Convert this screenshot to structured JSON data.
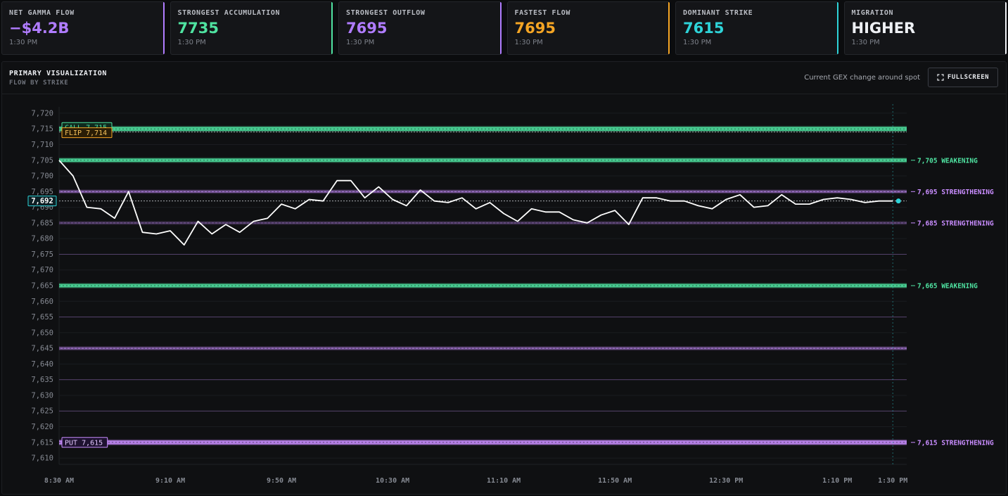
{
  "cards": [
    {
      "label": "NET GAMMA FLOW",
      "value": "−$4.2B",
      "time": "1:30 PM",
      "color": "#b07cff"
    },
    {
      "label": "STRONGEST ACCUMULATION",
      "value": "7735",
      "time": "1:30 PM",
      "color": "#4fe3a1"
    },
    {
      "label": "STRONGEST OUTFLOW",
      "value": "7695",
      "time": "1:30 PM",
      "color": "#b07cff"
    },
    {
      "label": "FASTEST FLOW",
      "value": "7695",
      "time": "1:30 PM",
      "color": "#f5a524"
    },
    {
      "label": "DOMINANT STRIKE",
      "value": "7615",
      "time": "1:30 PM",
      "color": "#2ed3d8"
    },
    {
      "label": "MIGRATION",
      "value": "HIGHER",
      "time": "1:30 PM",
      "color": "#eef0f4"
    }
  ],
  "panel": {
    "title": "PRIMARY VISUALIZATION",
    "subtitle": "FLOW BY STRIKE",
    "note": "Current GEX change around spot",
    "fullscreen_label": "FULLSCREEN",
    "fullscreen_icon": "expand-icon"
  },
  "colors": {
    "green": "#4fe3a1",
    "purple": "#c98dff",
    "price": "#ffffff",
    "spot": "#2ed3d8",
    "flip": "#f5a524"
  },
  "chart_data": {
    "type": "line",
    "x_ticks": [
      "8:30 AM",
      "9:10 AM",
      "9:50 AM",
      "10:30 AM",
      "11:10 AM",
      "11:50 AM",
      "12:30 PM",
      "1:10 PM",
      "1:30 PM"
    ],
    "x_range": [
      "8:30 AM",
      "1:35 PM"
    ],
    "ylim": [
      7608,
      7722
    ],
    "y_ticks": [
      7720,
      7715,
      7710,
      7705,
      7700,
      7695,
      7690,
      7685,
      7680,
      7675,
      7670,
      7665,
      7660,
      7655,
      7650,
      7645,
      7640,
      7635,
      7630,
      7625,
      7620,
      7615,
      7610
    ],
    "y_tick_labels": [
      "7,720",
      "7,715",
      "7,710",
      "7,705",
      "7,700",
      "7,695",
      "7,690",
      "7,685",
      "7,680",
      "7,675",
      "7,670",
      "7,665",
      "7,660",
      "7,655",
      "7,650",
      "7,645",
      "7,640",
      "7,635",
      "7,630",
      "7,625",
      "7,620",
      "7,615",
      "7,610"
    ],
    "spot": {
      "value": 7692,
      "label": "7,692"
    },
    "flip": {
      "value": 7714,
      "label": "FLIP 7,714"
    },
    "call_wall": {
      "value": 7715,
      "label": "CALL 7,715"
    },
    "put_wall": {
      "value": 7615,
      "label": "PUT 7,615"
    },
    "strike_bands": [
      {
        "strike": 7715,
        "color": "green",
        "weight": 6
      },
      {
        "strike": 7705,
        "color": "green",
        "weight": 5
      },
      {
        "strike": 7695,
        "color": "purple",
        "weight": 3
      },
      {
        "strike": 7685,
        "color": "purple",
        "weight": 2
      },
      {
        "strike": 7675,
        "color": "purple",
        "weight": 1
      },
      {
        "strike": 7665,
        "color": "green",
        "weight": 5
      },
      {
        "strike": 7655,
        "color": "purple",
        "weight": 1
      },
      {
        "strike": 7645,
        "color": "purple",
        "weight": 3
      },
      {
        "strike": 7635,
        "color": "purple",
        "weight": 1
      },
      {
        "strike": 7625,
        "color": "purple",
        "weight": 1
      },
      {
        "strike": 7615,
        "color": "purple",
        "weight": 6
      }
    ],
    "right_labels": [
      {
        "strike": 7705,
        "text": "7,705 WEAKENING",
        "color": "green"
      },
      {
        "strike": 7695,
        "text": "7,695 STRENGTHENING",
        "color": "purple"
      },
      {
        "strike": 7685,
        "text": "7,685 STRENGTHENING",
        "color": "purple"
      },
      {
        "strike": 7665,
        "text": "7,665 WEAKENING",
        "color": "green"
      },
      {
        "strike": 7615,
        "text": "7,615 STRENGTHENING",
        "color": "purple"
      }
    ],
    "series": [
      {
        "t": [
          0,
          5,
          10,
          15,
          20,
          25,
          30,
          35,
          40,
          45,
          50,
          55,
          60,
          65,
          70,
          75,
          80,
          85,
          90,
          95,
          100,
          105,
          110,
          115,
          120,
          125,
          130,
          135,
          140,
          145,
          150,
          155,
          160,
          165,
          170,
          175,
          180,
          185,
          190,
          195,
          200,
          205,
          210,
          215,
          220,
          225,
          230,
          235,
          240,
          245,
          250,
          255,
          260,
          265,
          270,
          275,
          280,
          285,
          290,
          295,
          300
        ],
        "y": [
          7705,
          7700,
          7690,
          7689.5,
          7686.5,
          7695,
          7682,
          7681.5,
          7682.5,
          7678,
          7685.5,
          7681.5,
          7684.5,
          7682,
          7685.5,
          7686.5,
          7691,
          7689.5,
          7692.5,
          7692,
          7698.5,
          7698.5,
          7693,
          7696.5,
          7692.5,
          7690.5,
          7695.5,
          7692,
          7691.5,
          7693,
          7689.5,
          7691.5,
          7688,
          7685.5,
          7689.5,
          7688.5,
          7688.5,
          7686,
          7685,
          7687.5,
          7689,
          7684.5,
          7693,
          7693,
          7692,
          7692,
          7690.5,
          7689.5,
          7692.5,
          7694,
          7690,
          7690.5,
          7694,
          7691,
          7691,
          7692.5,
          7693,
          7692.5,
          7691.5,
          7692,
          7692
        ]
      }
    ]
  }
}
